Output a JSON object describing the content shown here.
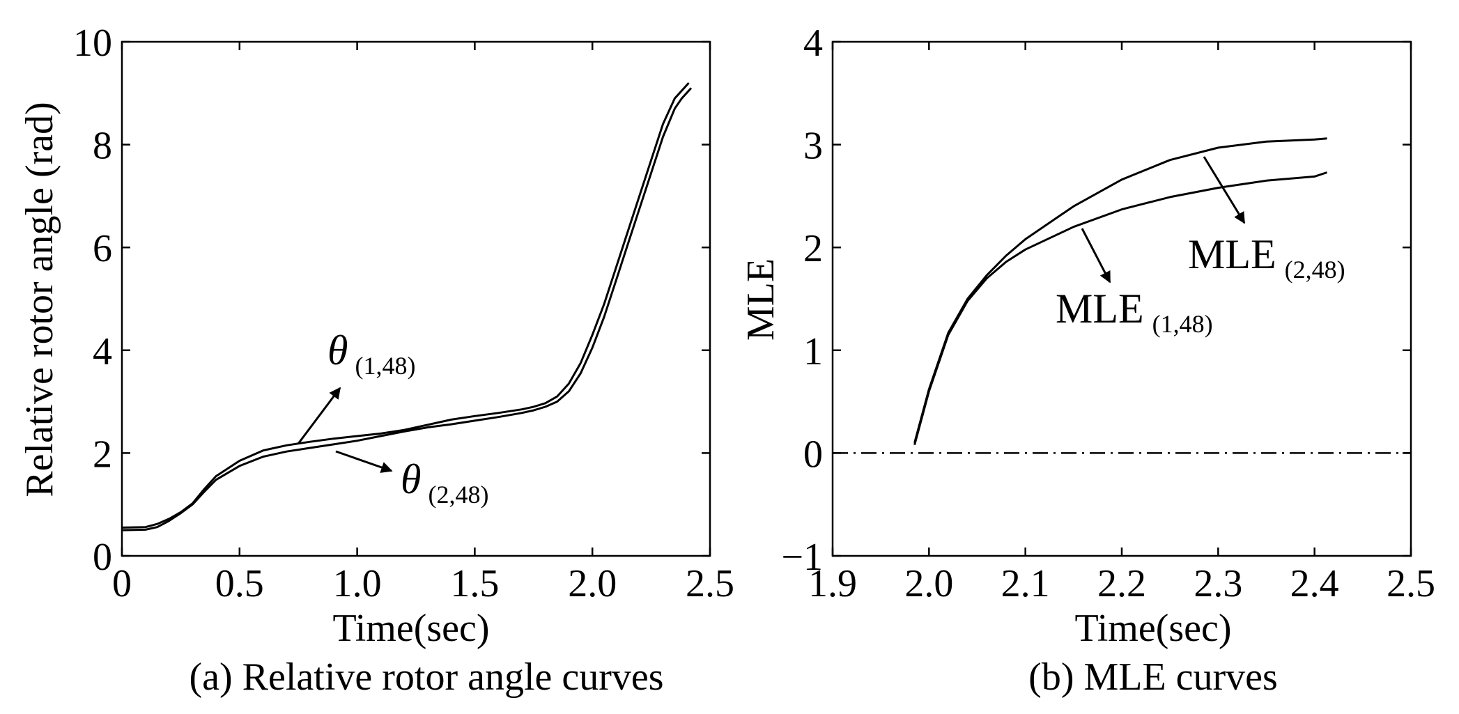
{
  "chart_data": [
    {
      "type": "line",
      "panel_caption": "(a) Relative rotor angle curves",
      "xlabel": "Time(sec)",
      "ylabel": "Relative rotor angle (rad)",
      "xlim": [
        0,
        2.5
      ],
      "ylim": [
        0,
        10
      ],
      "xticks": [
        0,
        0.5,
        1.0,
        1.5,
        2.0,
        2.5
      ],
      "xtick_labels": [
        "0",
        "0.5",
        "1.0",
        "1.5",
        "2.0",
        "2.5"
      ],
      "yticks": [
        0,
        2,
        4,
        6,
        8,
        10
      ],
      "ytick_labels": [
        "0",
        "2",
        "4",
        "6",
        "8",
        "10"
      ],
      "series": [
        {
          "name": "θ(1,48)",
          "x": [
            0,
            0.1,
            0.15,
            0.2,
            0.25,
            0.3,
            0.35,
            0.4,
            0.5,
            0.6,
            0.7,
            0.8,
            0.9,
            1.0,
            1.1,
            1.2,
            1.3,
            1.4,
            1.5,
            1.6,
            1.7,
            1.75,
            1.8,
            1.85,
            1.9,
            1.95,
            2.0,
            2.05,
            2.1,
            2.15,
            2.2,
            2.25,
            2.3,
            2.35,
            2.38,
            2.41
          ],
          "y": [
            0.55,
            0.56,
            0.62,
            0.72,
            0.85,
            1.02,
            1.3,
            1.55,
            1.85,
            2.05,
            2.15,
            2.22,
            2.28,
            2.33,
            2.38,
            2.45,
            2.55,
            2.65,
            2.72,
            2.78,
            2.85,
            2.9,
            2.97,
            3.1,
            3.35,
            3.75,
            4.3,
            4.9,
            5.6,
            6.3,
            7.0,
            7.7,
            8.4,
            8.9,
            9.05,
            9.2
          ]
        },
        {
          "name": "θ(2,48)",
          "x": [
            0,
            0.1,
            0.15,
            0.2,
            0.25,
            0.3,
            0.35,
            0.4,
            0.5,
            0.6,
            0.7,
            0.8,
            0.9,
            1.0,
            1.1,
            1.2,
            1.3,
            1.4,
            1.5,
            1.6,
            1.7,
            1.75,
            1.8,
            1.85,
            1.9,
            1.95,
            2.0,
            2.05,
            2.1,
            2.15,
            2.2,
            2.25,
            2.3,
            2.35,
            2.38,
            2.42
          ],
          "y": [
            0.5,
            0.51,
            0.56,
            0.68,
            0.83,
            1.0,
            1.25,
            1.48,
            1.75,
            1.93,
            2.03,
            2.1,
            2.17,
            2.24,
            2.33,
            2.42,
            2.5,
            2.56,
            2.63,
            2.7,
            2.78,
            2.83,
            2.9,
            3.0,
            3.2,
            3.55,
            4.05,
            4.65,
            5.35,
            6.05,
            6.75,
            7.45,
            8.15,
            8.7,
            8.9,
            9.1
          ]
        }
      ],
      "annotations": [
        {
          "id": "theta1",
          "symbol": "θ",
          "subscript": "(1,48)",
          "points_to": "θ(1,48)"
        },
        {
          "id": "theta2",
          "symbol": "θ",
          "subscript": "(2,48)",
          "points_to": "θ(2,48)"
        }
      ]
    },
    {
      "type": "line",
      "panel_caption": "(b) MLE curves",
      "xlabel": "Time(sec)",
      "ylabel": "MLE",
      "xlim": [
        1.9,
        2.5
      ],
      "ylim": [
        -1,
        4
      ],
      "xticks": [
        1.9,
        2.0,
        2.1,
        2.2,
        2.3,
        2.4,
        2.5
      ],
      "xtick_labels": [
        "1.9",
        "2.0",
        "2.1",
        "2.2",
        "2.3",
        "2.4",
        "2.5"
      ],
      "yticks": [
        -1,
        0,
        1,
        2,
        3,
        4
      ],
      "ytick_labels": [
        "−1",
        "0",
        "1",
        "2",
        "3",
        "4"
      ],
      "reference_line": {
        "y": 0,
        "style": "dash-dot"
      },
      "series": [
        {
          "name": "MLE(1,48)",
          "x": [
            1.985,
            2.0,
            2.02,
            2.04,
            2.06,
            2.08,
            2.1,
            2.15,
            2.2,
            2.25,
            2.3,
            2.35,
            2.4,
            2.413
          ],
          "y": [
            0.08,
            0.6,
            1.15,
            1.48,
            1.7,
            1.86,
            1.98,
            2.2,
            2.37,
            2.49,
            2.58,
            2.65,
            2.69,
            2.73
          ]
        },
        {
          "name": "MLE(2,48)",
          "x": [
            1.985,
            2.0,
            2.02,
            2.04,
            2.06,
            2.08,
            2.1,
            2.15,
            2.2,
            2.25,
            2.3,
            2.35,
            2.4,
            2.413
          ],
          "y": [
            0.1,
            0.62,
            1.17,
            1.5,
            1.73,
            1.92,
            2.08,
            2.4,
            2.66,
            2.85,
            2.97,
            3.03,
            3.05,
            3.06
          ]
        }
      ],
      "annotations": [
        {
          "id": "mle1",
          "symbol": "MLE",
          "subscript": "(1,48)",
          "points_to": "MLE(1,48)"
        },
        {
          "id": "mle2",
          "symbol": "MLE",
          "subscript": "(2,48)",
          "points_to": "MLE(2,48)"
        }
      ]
    }
  ],
  "colors": {
    "ink": "#000000",
    "background": "#ffffff"
  }
}
